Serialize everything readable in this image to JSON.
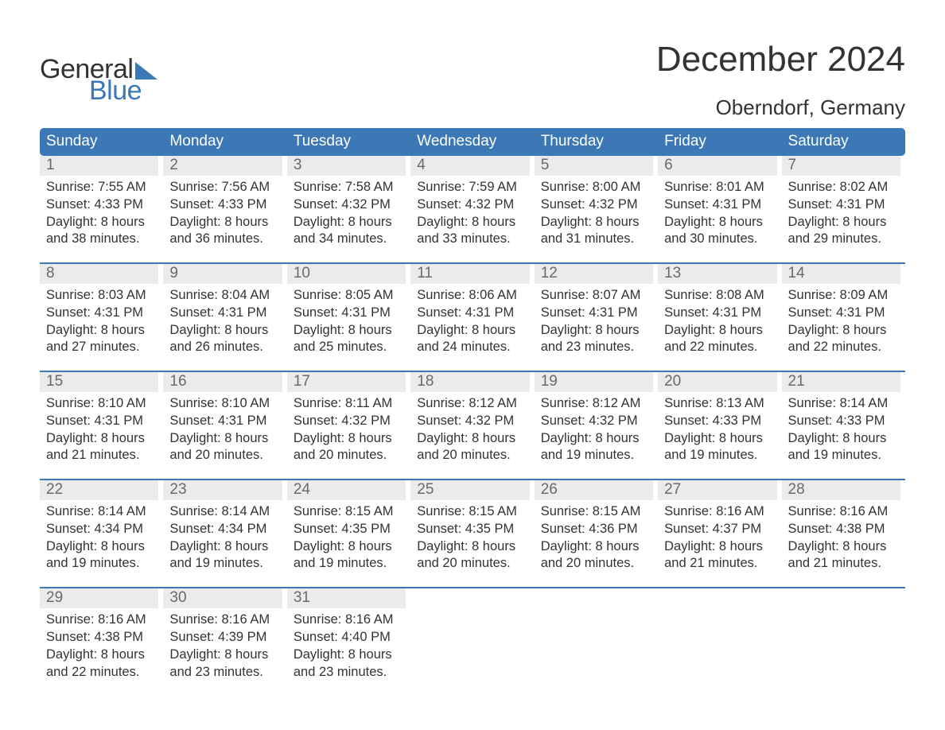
{
  "logo": {
    "line1": "General",
    "line2": "Blue"
  },
  "title": "December 2024",
  "location": "Oberndorf, Germany",
  "colors": {
    "brand_blue": "#3b78b5",
    "header_text": "#ffffff",
    "daynum_bg": "#ebebeb",
    "daynum_text": "#6a6a6a",
    "body_text": "#333333",
    "page_bg": "#ffffff"
  },
  "typography": {
    "title_fontsize": 44,
    "location_fontsize": 26,
    "weekday_fontsize": 19,
    "daynum_fontsize": 19,
    "body_fontsize": 16.5,
    "font_family": "Arial"
  },
  "weekdays": [
    "Sunday",
    "Monday",
    "Tuesday",
    "Wednesday",
    "Thursday",
    "Friday",
    "Saturday"
  ],
  "days": [
    {
      "n": 1,
      "sunrise": "7:55 AM",
      "sunset": "4:33 PM",
      "daylight": "8 hours and 38 minutes."
    },
    {
      "n": 2,
      "sunrise": "7:56 AM",
      "sunset": "4:33 PM",
      "daylight": "8 hours and 36 minutes."
    },
    {
      "n": 3,
      "sunrise": "7:58 AM",
      "sunset": "4:32 PM",
      "daylight": "8 hours and 34 minutes."
    },
    {
      "n": 4,
      "sunrise": "7:59 AM",
      "sunset": "4:32 PM",
      "daylight": "8 hours and 33 minutes."
    },
    {
      "n": 5,
      "sunrise": "8:00 AM",
      "sunset": "4:32 PM",
      "daylight": "8 hours and 31 minutes."
    },
    {
      "n": 6,
      "sunrise": "8:01 AM",
      "sunset": "4:31 PM",
      "daylight": "8 hours and 30 minutes."
    },
    {
      "n": 7,
      "sunrise": "8:02 AM",
      "sunset": "4:31 PM",
      "daylight": "8 hours and 29 minutes."
    },
    {
      "n": 8,
      "sunrise": "8:03 AM",
      "sunset": "4:31 PM",
      "daylight": "8 hours and 27 minutes."
    },
    {
      "n": 9,
      "sunrise": "8:04 AM",
      "sunset": "4:31 PM",
      "daylight": "8 hours and 26 minutes."
    },
    {
      "n": 10,
      "sunrise": "8:05 AM",
      "sunset": "4:31 PM",
      "daylight": "8 hours and 25 minutes."
    },
    {
      "n": 11,
      "sunrise": "8:06 AM",
      "sunset": "4:31 PM",
      "daylight": "8 hours and 24 minutes."
    },
    {
      "n": 12,
      "sunrise": "8:07 AM",
      "sunset": "4:31 PM",
      "daylight": "8 hours and 23 minutes."
    },
    {
      "n": 13,
      "sunrise": "8:08 AM",
      "sunset": "4:31 PM",
      "daylight": "8 hours and 22 minutes."
    },
    {
      "n": 14,
      "sunrise": "8:09 AM",
      "sunset": "4:31 PM",
      "daylight": "8 hours and 22 minutes."
    },
    {
      "n": 15,
      "sunrise": "8:10 AM",
      "sunset": "4:31 PM",
      "daylight": "8 hours and 21 minutes."
    },
    {
      "n": 16,
      "sunrise": "8:10 AM",
      "sunset": "4:31 PM",
      "daylight": "8 hours and 20 minutes."
    },
    {
      "n": 17,
      "sunrise": "8:11 AM",
      "sunset": "4:32 PM",
      "daylight": "8 hours and 20 minutes."
    },
    {
      "n": 18,
      "sunrise": "8:12 AM",
      "sunset": "4:32 PM",
      "daylight": "8 hours and 20 minutes."
    },
    {
      "n": 19,
      "sunrise": "8:12 AM",
      "sunset": "4:32 PM",
      "daylight": "8 hours and 19 minutes."
    },
    {
      "n": 20,
      "sunrise": "8:13 AM",
      "sunset": "4:33 PM",
      "daylight": "8 hours and 19 minutes."
    },
    {
      "n": 21,
      "sunrise": "8:14 AM",
      "sunset": "4:33 PM",
      "daylight": "8 hours and 19 minutes."
    },
    {
      "n": 22,
      "sunrise": "8:14 AM",
      "sunset": "4:34 PM",
      "daylight": "8 hours and 19 minutes."
    },
    {
      "n": 23,
      "sunrise": "8:14 AM",
      "sunset": "4:34 PM",
      "daylight": "8 hours and 19 minutes."
    },
    {
      "n": 24,
      "sunrise": "8:15 AM",
      "sunset": "4:35 PM",
      "daylight": "8 hours and 19 minutes."
    },
    {
      "n": 25,
      "sunrise": "8:15 AM",
      "sunset": "4:35 PM",
      "daylight": "8 hours and 20 minutes."
    },
    {
      "n": 26,
      "sunrise": "8:15 AM",
      "sunset": "4:36 PM",
      "daylight": "8 hours and 20 minutes."
    },
    {
      "n": 27,
      "sunrise": "8:16 AM",
      "sunset": "4:37 PM",
      "daylight": "8 hours and 21 minutes."
    },
    {
      "n": 28,
      "sunrise": "8:16 AM",
      "sunset": "4:38 PM",
      "daylight": "8 hours and 21 minutes."
    },
    {
      "n": 29,
      "sunrise": "8:16 AM",
      "sunset": "4:38 PM",
      "daylight": "8 hours and 22 minutes."
    },
    {
      "n": 30,
      "sunrise": "8:16 AM",
      "sunset": "4:39 PM",
      "daylight": "8 hours and 23 minutes."
    },
    {
      "n": 31,
      "sunrise": "8:16 AM",
      "sunset": "4:40 PM",
      "daylight": "8 hours and 23 minutes."
    }
  ],
  "labels": {
    "sunrise_prefix": "Sunrise: ",
    "sunset_prefix": "Sunset: ",
    "daylight_prefix": "Daylight: "
  },
  "layout": {
    "start_weekday_index": 0,
    "weeks": 5,
    "columns": 7
  }
}
